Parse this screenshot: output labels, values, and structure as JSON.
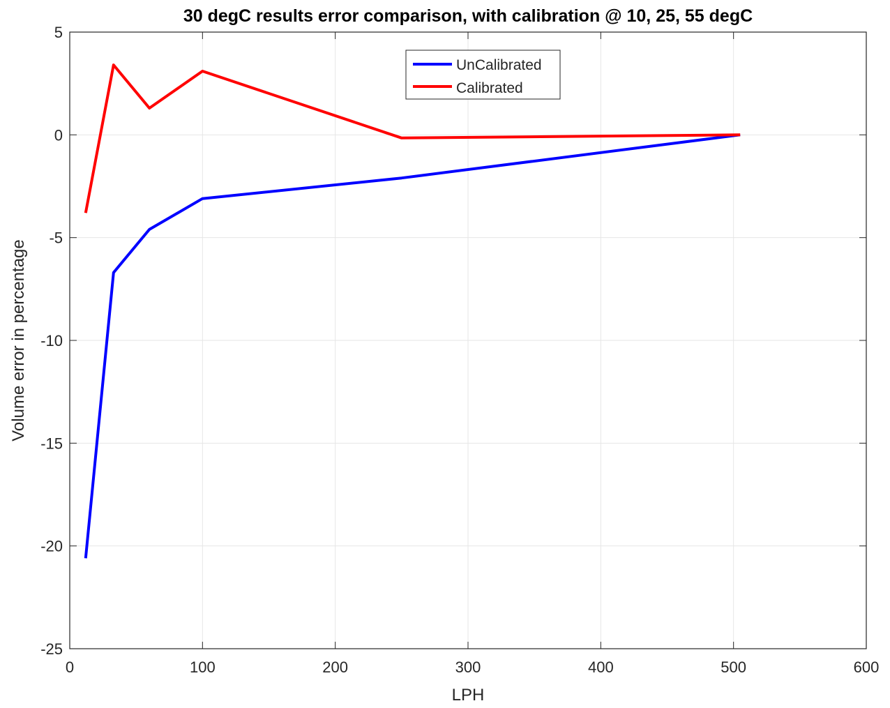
{
  "chart_data": {
    "type": "line",
    "title": "30 degC results error comparison, with calibration @ 10, 25, 55 degC",
    "xlabel": "LPH",
    "ylabel": "Volume error in percentage",
    "xlim": [
      0,
      600
    ],
    "ylim": [
      -25,
      5
    ],
    "xticks": [
      0,
      100,
      200,
      300,
      400,
      500,
      600
    ],
    "yticks": [
      -25,
      -20,
      -15,
      -10,
      -5,
      0,
      5
    ],
    "grid": true,
    "legend_position": "top-center",
    "series": [
      {
        "name": "UnCalibrated",
        "color": "#0000ff",
        "x": [
          12,
          33,
          60,
          100,
          250,
          505
        ],
        "y": [
          -20.6,
          -6.7,
          -4.6,
          -3.1,
          -2.1,
          0.0
        ]
      },
      {
        "name": "Calibrated",
        "color": "#ff0000",
        "x": [
          12,
          33,
          60,
          100,
          250,
          505
        ],
        "y": [
          -3.8,
          3.4,
          1.3,
          3.1,
          -0.15,
          0.0
        ]
      }
    ]
  }
}
